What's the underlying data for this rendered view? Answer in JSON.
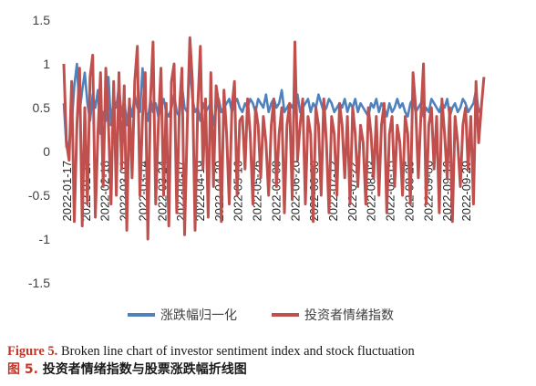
{
  "chart_data": {
    "type": "line",
    "title": "",
    "xlabel": "",
    "ylabel": "",
    "ylim": [
      -1.5,
      1.5
    ],
    "yticks": [
      "1.5",
      "1",
      "0.5",
      "0",
      "-0.5",
      "-1",
      "-1.5"
    ],
    "ytick_values": [
      1.5,
      1,
      0.5,
      0,
      -0.5,
      -1,
      -1.5
    ],
    "xtick_labels": [
      "2022-01-17",
      "2022-01-27",
      "2022-02-18",
      "2022-03-02",
      "2022-03-14",
      "2022-03-24",
      "2022-04-07",
      "2022-04-19",
      "2022-04-29",
      "2022-05-16",
      "2022-05-26",
      "2022-06-08",
      "2022-06-20",
      "2022-06-30",
      "2022-07-12",
      "2022-07-22",
      "2022-08-03",
      "2022-08-15",
      "2022-08-25",
      "2022-09-06",
      "2022-09-19",
      "2022-09-29"
    ],
    "grid": false,
    "legend_position": "bottom",
    "series": [
      {
        "name": "涨跌幅归一化",
        "color": "#4f81bd",
        "values": [
          0.55,
          0.05,
          0.1,
          0.3,
          0.75,
          1.0,
          0.45,
          0.7,
          0.9,
          0.55,
          0.35,
          0.65,
          0.5,
          0.7,
          0.2,
          0.45,
          0.35,
          0.85,
          0.3,
          0.6,
          0.5,
          0.75,
          0.4,
          0.6,
          0.3,
          0.55,
          0.4,
          0.65,
          0.5,
          0.45,
          0.95,
          0.5,
          0.35,
          0.6,
          0.45,
          0.55,
          0.4,
          0.5,
          0.6,
          0.45,
          0.4,
          0.5,
          0.65,
          0.45,
          0.4,
          0.75,
          0.5,
          0.45,
          1.0,
          0.6,
          0.45,
          0.5,
          0.35,
          0.55,
          0.45,
          0.5,
          0.55,
          0.3,
          0.5,
          0.6,
          0.45,
          0.5,
          0.55,
          0.6,
          0.45,
          0.55,
          0.6,
          0.5,
          0.45,
          0.55,
          0.5,
          0.6,
          0.55,
          0.45,
          0.6,
          0.55,
          0.5,
          0.65,
          0.45,
          0.55,
          0.6,
          0.5,
          0.55,
          0.7,
          0.45,
          0.5,
          0.55,
          0.5,
          0.6,
          0.65,
          0.45,
          0.5,
          0.55,
          0.6,
          0.45,
          0.55,
          0.5,
          0.65,
          0.55,
          0.45,
          0.5,
          0.6,
          0.55,
          0.45,
          0.5,
          0.55,
          0.5,
          0.6,
          0.45,
          0.55,
          0.5,
          0.6,
          0.45,
          0.55,
          0.5,
          0.45,
          0.4,
          0.55,
          0.5,
          0.6,
          0.45,
          0.55,
          0.5,
          0.4,
          0.55,
          0.45,
          0.5,
          0.6,
          0.5,
          0.55,
          0.45,
          0.4,
          0.55,
          0.6,
          0.45,
          0.5,
          0.55,
          0.4,
          0.5,
          0.45,
          0.6,
          0.55,
          0.5,
          0.45,
          0.55,
          0.5,
          0.6,
          0.4,
          0.5,
          0.55,
          0.45,
          0.5,
          0.6,
          0.55,
          0.45,
          0.5,
          0.55,
          0.7,
          0.45,
          0.5
        ]
      },
      {
        "name": "投资者情绪指数",
        "color": "#c0504d",
        "values": [
          1.0,
          0.1,
          -0.1,
          0.8,
          -0.8,
          0.3,
          0.95,
          -0.85,
          0.5,
          -0.6,
          0.85,
          1.1,
          -0.75,
          0.2,
          0.9,
          -0.4,
          0.95,
          0.3,
          -0.6,
          0.8,
          -0.5,
          0.9,
          -0.2,
          0.75,
          -0.9,
          0.6,
          -0.3,
          0.8,
          1.2,
          -0.5,
          0.4,
          0.9,
          -1.0,
          0.6,
          1.25,
          -0.6,
          0.3,
          0.95,
          -0.5,
          0.55,
          -0.85,
          0.8,
          1.0,
          -0.7,
          0.45,
          0.95,
          -0.95,
          0.3,
          1.3,
          0.8,
          -0.9,
          0.5,
          1.2,
          -0.2,
          0.6,
          -0.75,
          0.9,
          -0.4,
          0.75,
          0.55,
          -0.8,
          0.7,
          0.2,
          -0.6,
          0.5,
          0.8,
          -0.5,
          0.35,
          0.4,
          -0.2,
          0.6,
          0.2,
          -0.6,
          0.5,
          0.3,
          -0.3,
          0.4,
          0.1,
          -0.5,
          0.3,
          0.6,
          -0.4,
          0.2,
          0.5,
          -0.7,
          0.3,
          0.55,
          -0.55,
          1.25,
          -0.1,
          0.3,
          0.6,
          -0.6,
          0.4,
          0.2,
          -0.8,
          0.5,
          0.3,
          -0.5,
          0.6,
          0.1,
          -0.7,
          0.4,
          0.2,
          -0.5,
          0.55,
          0.3,
          -0.3,
          0.4,
          -0.6,
          0.5,
          0.2,
          -0.4,
          0.3,
          0.1,
          -0.6,
          0.5,
          0.2,
          -0.3,
          0.4,
          -0.5,
          0.3,
          0.55,
          -0.7,
          0.2,
          0.4,
          -0.4,
          0.3,
          0.1,
          -0.5,
          0.4,
          0.2,
          -0.6,
          0.9,
          0.5,
          -0.3,
          0.4,
          1.0,
          -0.6,
          0.3,
          0.5,
          -0.2,
          0.4,
          -0.7,
          0.6,
          0.2,
          -0.3,
          0.5,
          -0.8,
          0.4,
          0.1,
          -0.4,
          0.3,
          0.5,
          -0.2,
          0.4,
          -0.6,
          0.8,
          0.1,
          0.5,
          0.85
        ]
      }
    ]
  },
  "caption": {
    "en_label": "Figure 5.",
    "en_text": " Broken line chart of investor sentiment index and stock fluctuation",
    "zh_label": "图 5.",
    "zh_text": " 投资者情绪指数与股票涨跌幅折线图"
  }
}
